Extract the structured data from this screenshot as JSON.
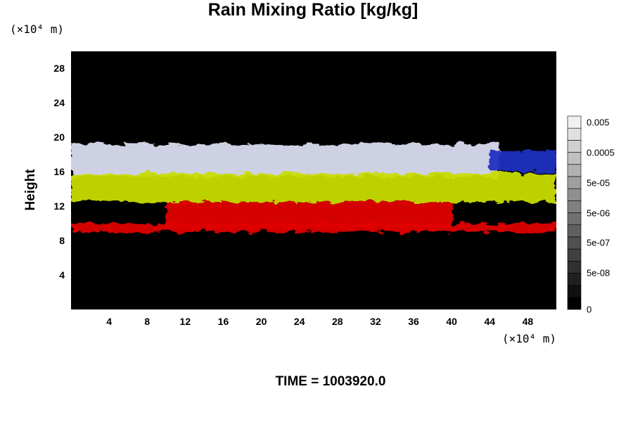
{
  "chart_data": {
    "type": "heatmap",
    "title": "Rain Mixing Ratio [kg/kg]",
    "xlabel": "",
    "ylabel": "Height",
    "x_unit_label": "(×10⁴ m)",
    "y_unit_label": "(×10⁴ m)",
    "xlim": [
      0,
      51
    ],
    "ylim": [
      0,
      30
    ],
    "xticks": [
      "4",
      "8",
      "12",
      "16",
      "20",
      "24",
      "28",
      "32",
      "36",
      "40",
      "44",
      "48"
    ],
    "yticks": [
      "4",
      "8",
      "12",
      "16",
      "20",
      "24",
      "28"
    ],
    "colorbar": {
      "tick_labels": [
        "0",
        "5e-08",
        "5e-07",
        "5e-06",
        "5e-05",
        "0.0005",
        "0.005"
      ],
      "levels": 16
    },
    "layers": [
      {
        "color": "#d9dcf0",
        "x_start": 0,
        "x_end": 45,
        "y_bottom": 15.5,
        "y_top": 19.2
      },
      {
        "color": "#2030c0",
        "x_start": 44,
        "x_end": 51,
        "y_bottom": 16.0,
        "y_top": 18.5
      },
      {
        "color": "#c8dc00",
        "x_start": 0,
        "x_end": 51,
        "y_bottom": 12.5,
        "y_top": 15.8
      },
      {
        "color": "#e00000",
        "x_start": 10,
        "x_end": 40,
        "y_bottom": 9.5,
        "y_top": 12.5
      },
      {
        "color": "#e00000",
        "x_start": 0,
        "x_end": 51,
        "y_bottom": 9.0,
        "y_top": 10.0
      }
    ],
    "grid": false,
    "background": "#000000"
  },
  "footer": {
    "time_label": "TIME = 1003920.0"
  }
}
